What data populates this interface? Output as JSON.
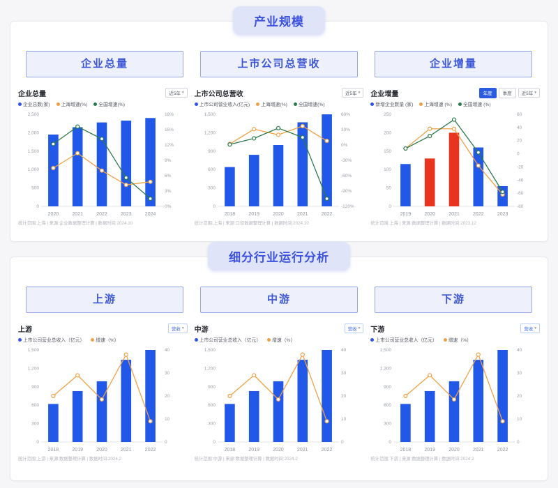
{
  "icons": {
    "chevron_down": "▾"
  },
  "colors": {
    "accent_blue": "#3d52de",
    "bar_blue": "#2158e8",
    "bar_red": "#e8331f",
    "line_orange": "#f0a145",
    "line_green": "#2b7a4b",
    "pill_bg": "#dfe4f9",
    "button_bg": "#eef1fc"
  },
  "sections": [
    {
      "title": "产业规模",
      "buttons": [
        "企业总量",
        "上市公司总营收",
        "企业增量"
      ]
    },
    {
      "title": "细分行业运行分析",
      "buttons": [
        "上游",
        "中游",
        "下游"
      ]
    }
  ],
  "chart_data": [
    {
      "type": "bar",
      "title": "企业总量",
      "controls": {
        "dropdown": "近5年"
      },
      "legend": [
        {
          "label": "企业总数(家)",
          "color": "#2f54eb"
        },
        {
          "label": "上海增速(%)",
          "color": "#f0a145"
        },
        {
          "label": "全国增速(%)",
          "color": "#2b7a4b"
        }
      ],
      "categories": [
        "2020",
        "2021",
        "2022",
        "2023",
        "2024"
      ],
      "bars": {
        "values": [
          1950,
          2150,
          2280,
          2330,
          2400
        ],
        "colors": [
          "#2158e8",
          "#2158e8",
          "#2158e8",
          "#2158e8",
          "#2158e8"
        ]
      },
      "series": [
        {
          "name": "上海增速(%)",
          "color": "#f0a145",
          "values": [
            7.5,
            10.4,
            7.0,
            4.2,
            4.8
          ]
        },
        {
          "name": "全国增速(%)",
          "color": "#2b7a4b",
          "values": [
            12.2,
            15.6,
            13.2,
            5.6,
            1.5
          ]
        }
      ],
      "left_axis": {
        "ticks": [
          "2,500",
          "2,000",
          "1,500",
          "1,000",
          "500",
          "0"
        ],
        "min": 0,
        "max": 2500
      },
      "right_axis": {
        "ticks": [
          "18%",
          "15%",
          "12%",
          "9%",
          "6%",
          "3%",
          "0%"
        ],
        "min": 0,
        "max": 18
      },
      "footnote": "统计范围:上海 | 来源:企业数据整理计算 | 数据时间:2024.10"
    },
    {
      "type": "bar",
      "title": "上市公司总营收",
      "controls": {
        "dropdown": "近5年"
      },
      "legend": [
        {
          "label": "上市公司营业收入(亿元)",
          "color": "#2f54eb"
        },
        {
          "label": "上海增速(%)",
          "color": "#f0a145"
        },
        {
          "label": "全国增速(%)",
          "color": "#2b7a4b"
        }
      ],
      "categories": [
        "2018",
        "2019",
        "2020",
        "2021",
        "2022"
      ],
      "bars": {
        "values": [
          640,
          840,
          1000,
          1370,
          1500
        ],
        "colors": [
          "#2158e8",
          "#2158e8",
          "#2158e8",
          "#2158e8",
          "#2158e8"
        ]
      },
      "series": [
        {
          "name": "上海增速(%)",
          "color": "#f0a145",
          "values": [
            2,
            31,
            20,
            37,
            8
          ]
        },
        {
          "name": "全国增速(%)",
          "color": "#2b7a4b",
          "values": [
            1,
            13,
            33,
            15,
            -105
          ]
        }
      ],
      "left_axis": {
        "ticks": [
          "1,500",
          "1,200",
          "900",
          "600",
          "300",
          "0"
        ],
        "min": 0,
        "max": 1500
      },
      "right_axis": {
        "ticks": [
          "60%",
          "30%",
          "0%",
          "-30%",
          "-60%",
          "-90%",
          "-120%"
        ],
        "min": -120,
        "max": 60
      },
      "footnote": "统计范围:上海 | 来源:口径数据整理计算 | 数据时间:2024.10"
    },
    {
      "type": "bar",
      "title": "企业增量",
      "controls": {
        "dropdown": "近5年",
        "toggles": [
          "年度",
          "季度"
        ]
      },
      "legend": [
        {
          "label": "新增企业数量 (家)",
          "color": "#2f54eb"
        },
        {
          "label": "上海增速 (%)",
          "color": "#f0a145"
        },
        {
          "label": "全国增速 (%)",
          "color": "#2b7a4b"
        }
      ],
      "categories": [
        "2019",
        "2020",
        "2021",
        "2022",
        "2023"
      ],
      "bars": {
        "values": [
          115,
          130,
          200,
          160,
          55
        ],
        "colors": [
          "#2158e8",
          "#e8331f",
          "#e8331f",
          "#2158e8",
          "#2158e8"
        ]
      },
      "series": [
        {
          "name": "上海增速 (%)",
          "color": "#f0a145",
          "values": [
            8,
            38,
            38,
            -18,
            -62
          ]
        },
        {
          "name": "全国增速 (%)",
          "color": "#2b7a4b",
          "values": [
            8,
            27,
            52,
            2,
            -58
          ]
        }
      ],
      "left_axis": {
        "ticks": [
          "250",
          "200",
          "150",
          "100",
          "50",
          "0"
        ],
        "min": 0,
        "max": 250
      },
      "right_axis": {
        "ticks": [
          "60",
          "40",
          "20",
          "0",
          "-20",
          "-40",
          "-60",
          "-80"
        ],
        "min": -80,
        "max": 60
      },
      "footnote": "统计范围:上海 | 来源:数据整理计算 | 数据时间:2023.12"
    },
    {
      "type": "bar",
      "title": "上游",
      "controls": {
        "dropdown": "营收"
      },
      "legend": [
        {
          "label": "上市公司营业总收入（亿元）",
          "color": "#2f54eb"
        },
        {
          "label": "增速（%）",
          "color": "#f0a145"
        }
      ],
      "categories": [
        "2018",
        "2019",
        "2020",
        "2021",
        "2022"
      ],
      "bars": {
        "values": [
          620,
          830,
          990,
          1340,
          1500
        ],
        "colors": [
          "#2158e8",
          "#2158e8",
          "#2158e8",
          "#2158e8",
          "#2158e8"
        ]
      },
      "series": [
        {
          "name": "增速（%）",
          "color": "#f0a145",
          "values": [
            20,
            29,
            18.5,
            38,
            9
          ]
        }
      ],
      "left_axis": {
        "ticks": [
          "1,500",
          "1,200",
          "900",
          "600",
          "300",
          "0"
        ],
        "min": 0,
        "max": 1500
      },
      "right_axis": {
        "ticks": [
          "40",
          "30",
          "20",
          "10",
          "0"
        ],
        "min": 0,
        "max": 40
      },
      "footnote": "统计范围:上游 | 来源:数据整理计算 | 数据时间:2024.2"
    },
    {
      "type": "bar",
      "title": "中游",
      "controls": {
        "dropdown": "营收"
      },
      "legend": [
        {
          "label": "上市公司营业总收入（亿元）",
          "color": "#2f54eb"
        },
        {
          "label": "增速（%）",
          "color": "#f0a145"
        }
      ],
      "categories": [
        "2018",
        "2019",
        "2020",
        "2021",
        "2022"
      ],
      "bars": {
        "values": [
          620,
          830,
          990,
          1340,
          1500
        ],
        "colors": [
          "#2158e8",
          "#2158e8",
          "#2158e8",
          "#2158e8",
          "#2158e8"
        ]
      },
      "series": [
        {
          "name": "增速（%）",
          "color": "#f0a145",
          "values": [
            20,
            29,
            18.5,
            38,
            9
          ]
        }
      ],
      "left_axis": {
        "ticks": [
          "1,500",
          "1,200",
          "900",
          "600",
          "300",
          "0"
        ],
        "min": 0,
        "max": 1500
      },
      "right_axis": {
        "ticks": [
          "40",
          "30",
          "20",
          "10",
          "0"
        ],
        "min": 0,
        "max": 40
      },
      "footnote": "统计范围:中游 | 来源:数据整理计算 | 数据时间:2024.2"
    },
    {
      "type": "bar",
      "title": "下游",
      "controls": {
        "dropdown": "营收"
      },
      "legend": [
        {
          "label": "上市公司营业总收入（亿元）",
          "color": "#2f54eb"
        },
        {
          "label": "增速（%）",
          "color": "#f0a145"
        }
      ],
      "categories": [
        "2018",
        "2019",
        "2020",
        "2021",
        "2022"
      ],
      "bars": {
        "values": [
          620,
          830,
          990,
          1340,
          1500
        ],
        "colors": [
          "#2158e8",
          "#2158e8",
          "#2158e8",
          "#2158e8",
          "#2158e8"
        ]
      },
      "series": [
        {
          "name": "增速（%）",
          "color": "#f0a145",
          "values": [
            20,
            29,
            18.5,
            38,
            9
          ]
        }
      ],
      "left_axis": {
        "ticks": [
          "1,500",
          "1,200",
          "900",
          "600",
          "300",
          "0"
        ],
        "min": 0,
        "max": 1500
      },
      "right_axis": {
        "ticks": [
          "40",
          "30",
          "20",
          "10",
          "0"
        ],
        "min": 0,
        "max": 40
      },
      "footnote": "统计范围:下游 | 来源:数据整理计算 | 数据时间:2024.2"
    }
  ]
}
